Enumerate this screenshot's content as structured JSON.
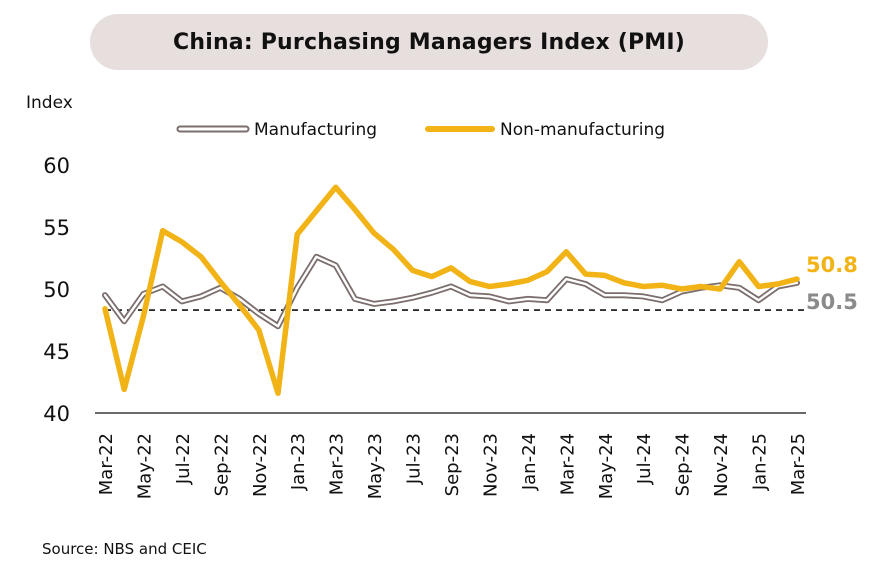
{
  "title": "China: Purchasing Managers Index (PMI)",
  "source": "Source: NBS and CEIC",
  "colors": {
    "manufacturing_outer": "#7b6e6c",
    "manufacturing_inner": "#ffffff",
    "non_manufacturing": "#f2b316",
    "end_label_manufacturing": "#8a8a8a",
    "end_label_non_manufacturing": "#f2b316",
    "axis": "#111111",
    "title_background": "#e7dfdd"
  },
  "chart_data": {
    "type": "line",
    "ylabel": "Index",
    "xlabel": "",
    "ylim": [
      40,
      60
    ],
    "yticks": [
      40,
      45,
      50,
      55,
      60
    ],
    "x": [
      "Mar-22",
      "Apr-22",
      "May-22",
      "Jun-22",
      "Jul-22",
      "Aug-22",
      "Sep-22",
      "Oct-22",
      "Nov-22",
      "Dec-22",
      "Jan-23",
      "Feb-23",
      "Mar-23",
      "Apr-23",
      "May-23",
      "Jun-23",
      "Jul-23",
      "Aug-23",
      "Sep-23",
      "Oct-23",
      "Nov-23",
      "Dec-23",
      "Jan-24",
      "Feb-24",
      "Mar-24",
      "Apr-24",
      "May-24",
      "Jun-24",
      "Jul-24",
      "Aug-24",
      "Sep-24",
      "Oct-24",
      "Nov-24",
      "Dec-24",
      "Jan-25",
      "Feb-25",
      "Mar-25"
    ],
    "xtick_labels": [
      "Mar-22",
      "May-22",
      "Jul-22",
      "Sep-22",
      "Nov-22",
      "Jan-23",
      "Mar-23",
      "May-23",
      "Jul-23",
      "Sep-23",
      "Nov-23",
      "Jan-24",
      "Mar-24",
      "May-24",
      "Jul-24",
      "Sep-24",
      "Nov-24",
      "Jan-25",
      "Mar-25"
    ],
    "series": [
      {
        "name": "Manufacturing",
        "values": [
          49.5,
          47.4,
          49.6,
          50.2,
          49.0,
          49.4,
          50.1,
          49.2,
          48.0,
          47.0,
          50.1,
          52.6,
          51.9,
          49.2,
          48.8,
          49.0,
          49.3,
          49.7,
          50.2,
          49.5,
          49.4,
          49.0,
          49.2,
          49.1,
          50.8,
          50.4,
          49.5,
          49.5,
          49.4,
          49.1,
          49.8,
          50.1,
          50.3,
          50.1,
          49.1,
          50.2,
          50.5
        ]
      },
      {
        "name": "Non-manufacturing",
        "values": [
          48.4,
          41.9,
          47.8,
          54.7,
          53.8,
          52.6,
          50.6,
          48.7,
          46.7,
          41.6,
          54.4,
          56.3,
          58.2,
          56.4,
          54.5,
          53.2,
          51.5,
          51.0,
          51.7,
          50.6,
          50.2,
          50.4,
          50.7,
          51.4,
          53.0,
          51.2,
          51.1,
          50.5,
          50.2,
          50.3,
          50.0,
          50.2,
          50.0,
          52.2,
          50.2,
          50.4,
          50.8
        ]
      }
    ],
    "reference_line": {
      "y": 48.3,
      "style": "dashed"
    },
    "end_labels": [
      "50.8",
      "50.5"
    ],
    "legend": {
      "placement": "top",
      "entries": [
        "Manufacturing",
        "Non-manufacturing"
      ]
    },
    "grid": false
  }
}
